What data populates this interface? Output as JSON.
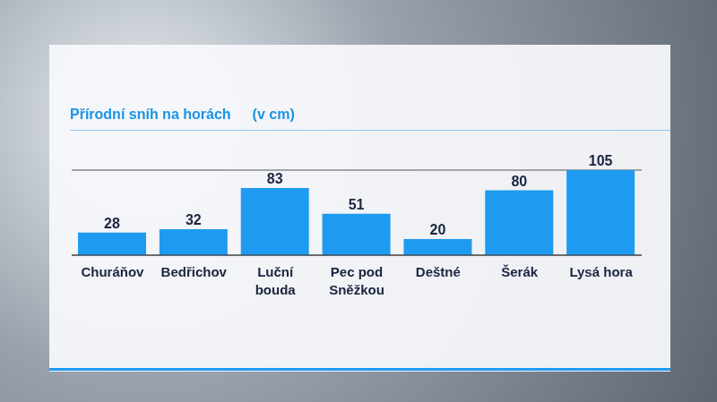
{
  "chart_data": {
    "type": "bar",
    "title": "Přírodní sníh na horách",
    "subtitle": "(v cm)",
    "categories": [
      "Churáňov",
      "Bedřichov",
      "Luční\nbouda",
      "Pec pod\nSněžkou",
      "Deštné",
      "Šerák",
      "Lysá hora"
    ],
    "values": [
      28,
      32,
      83,
      51,
      20,
      80,
      105
    ],
    "color": "#1e9bf0",
    "ylim": [
      0,
      105
    ],
    "yticks": [
      0,
      17.5,
      35,
      52.5,
      70,
      87.5,
      105
    ],
    "grid": true,
    "data_labels": true,
    "tick_labels": "x"
  }
}
